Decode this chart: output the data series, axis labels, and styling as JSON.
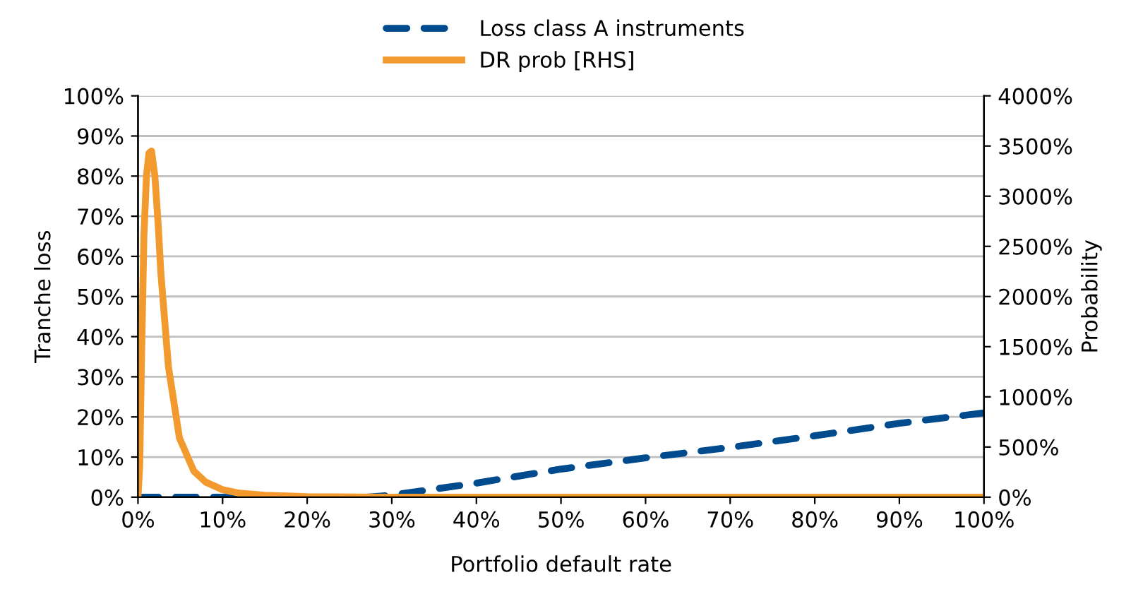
{
  "chart_data": {
    "type": "line",
    "xlabel": "Portfolio default rate",
    "ylabel": "Tranche loss",
    "y2label": "Probability",
    "xlim": [
      0,
      100
    ],
    "xticks": [
      {
        "value": 0,
        "label": "0%"
      },
      {
        "value": 10,
        "label": "10%"
      },
      {
        "value": 20,
        "label": "20%"
      },
      {
        "value": 30,
        "label": "30%"
      },
      {
        "value": 40,
        "label": "40%"
      },
      {
        "value": 50,
        "label": "50%"
      },
      {
        "value": 60,
        "label": "60%"
      },
      {
        "value": 70,
        "label": "70%"
      },
      {
        "value": 80,
        "label": "80%"
      },
      {
        "value": 90,
        "label": "90%"
      },
      {
        "value": 100,
        "label": "100%"
      }
    ],
    "ylim": [
      0,
      100
    ],
    "yticks": [
      {
        "value": 0,
        "label": "0%"
      },
      {
        "value": 10,
        "label": "10%"
      },
      {
        "value": 20,
        "label": "20%"
      },
      {
        "value": 30,
        "label": "30%"
      },
      {
        "value": 40,
        "label": "40%"
      },
      {
        "value": 50,
        "label": "50%"
      },
      {
        "value": 60,
        "label": "60%"
      },
      {
        "value": 70,
        "label": "70%"
      },
      {
        "value": 80,
        "label": "80%"
      },
      {
        "value": 90,
        "label": "90%"
      },
      {
        "value": 100,
        "label": "100%"
      }
    ],
    "y2lim": [
      0,
      4000
    ],
    "y2ticks": [
      {
        "value": 0,
        "label": "0%"
      },
      {
        "value": 500,
        "label": "500%"
      },
      {
        "value": 1000,
        "label": "1000%"
      },
      {
        "value": 1500,
        "label": "1500%"
      },
      {
        "value": 2000,
        "label": "2000%"
      },
      {
        "value": 2500,
        "label": "2500%"
      },
      {
        "value": 3000,
        "label": "3000%"
      },
      {
        "value": 3500,
        "label": "3500%"
      },
      {
        "value": 4000,
        "label": "4000%"
      }
    ],
    "grid": "y",
    "legend": "top",
    "marker": "none",
    "series": [
      {
        "name": "Loss class A instruments",
        "color": "#004b8d",
        "line_style": "dashed",
        "x": [
          0,
          10,
          20,
          27,
          30,
          40,
          50,
          60,
          70,
          80,
          90,
          100
        ],
        "values": [
          0,
          0,
          0,
          0,
          0.5,
          3.5,
          7,
          9.8,
          12.4,
          15.3,
          18.4,
          21
        ]
      },
      {
        "name": "DR prob [RHS]",
        "color": "#f29a2e",
        "line_style": "solid",
        "axis": "y2",
        "x": [
          0,
          0.2,
          0.4,
          0.7,
          1.0,
          1.3,
          1.6,
          2.0,
          2.4,
          2.7,
          3.6,
          4.9,
          6.6,
          8,
          10,
          12,
          15,
          20,
          30,
          40,
          50,
          60,
          70,
          80,
          90,
          100
        ],
        "values": [
          0,
          300,
          1300,
          2600,
          3200,
          3430,
          3450,
          3200,
          2700,
          2240,
          1300,
          590,
          260,
          150,
          75,
          40,
          20,
          5,
          0,
          0,
          0,
          0,
          0,
          0,
          0,
          0
        ]
      }
    ]
  }
}
